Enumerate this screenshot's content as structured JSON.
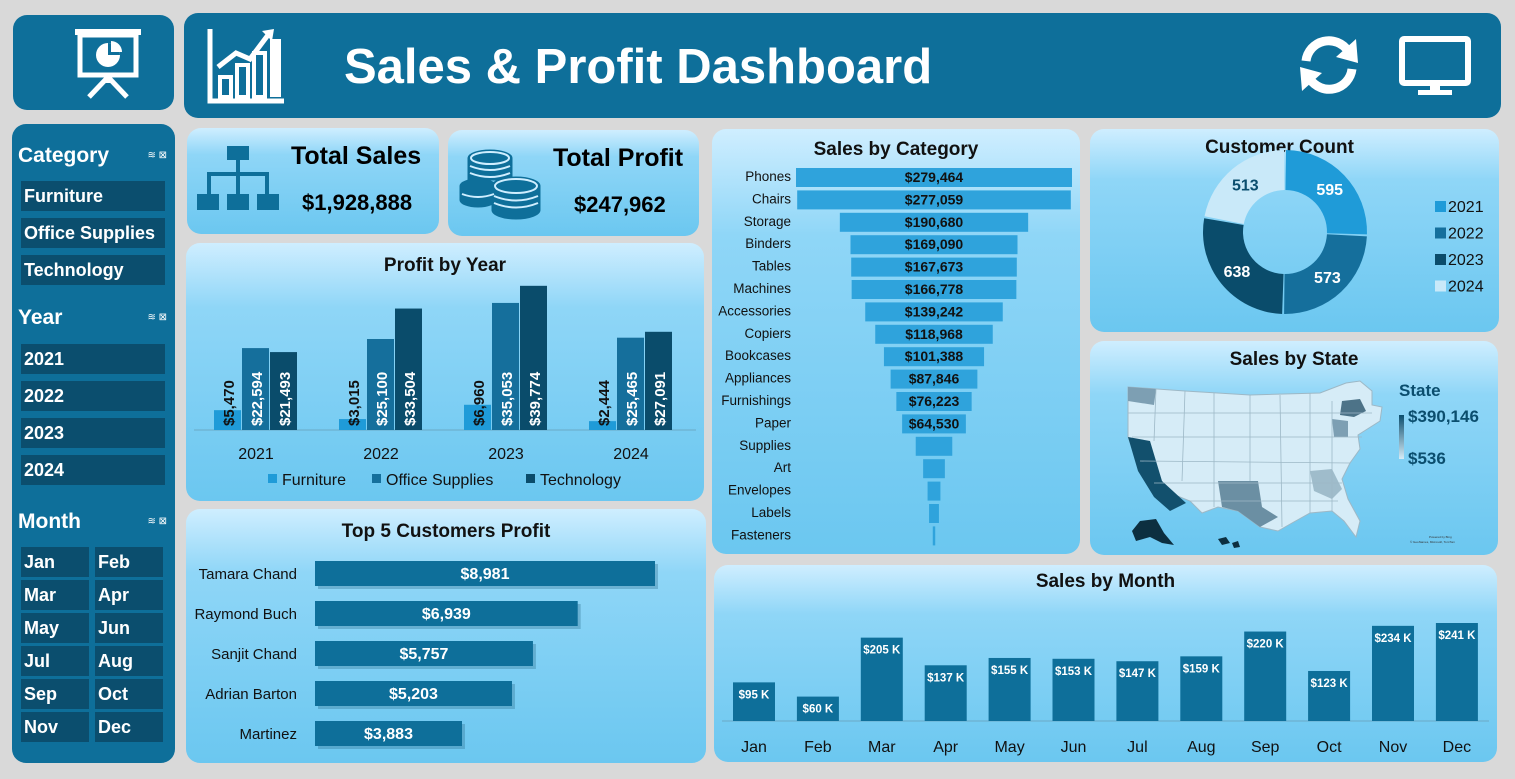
{
  "header": {
    "title": "Sales & Profit Dashboard"
  },
  "icons": {
    "presentation": "presentation-icon",
    "growth": "growth-chart-icon",
    "refresh": "refresh-icon",
    "monitor": "monitor-icon",
    "org": "org-chart-icon",
    "coins": "coins-icon",
    "filter": "filter-icon"
  },
  "colors": {
    "dark": "#0e6f9a",
    "slicer": "#0b4e6e",
    "furniture": "#1f9bd8",
    "office": "#156f9c",
    "technology": "#0a4c6b",
    "y2021": "#1f9bd8",
    "y2022": "#156f9c",
    "y2023": "#0a4c6b",
    "y2024": "#c9e9f9"
  },
  "slicers": {
    "category": {
      "label": "Category",
      "items": [
        "Furniture",
        "Office Supplies",
        "Technology"
      ]
    },
    "year": {
      "label": "Year",
      "items": [
        "2021",
        "2022",
        "2023",
        "2024"
      ]
    },
    "month": {
      "label": "Month",
      "items": [
        "Jan",
        "Feb",
        "Mar",
        "Apr",
        "May",
        "Jun",
        "Jul",
        "Aug",
        "Sep",
        "Oct",
        "Nov",
        "Dec"
      ]
    }
  },
  "kpis": {
    "total_sales": {
      "label": "Total Sales",
      "value": "$1,928,888"
    },
    "total_profit": {
      "label": "Total Profit",
      "value": "$247,962"
    }
  },
  "profit_by_year": {
    "title": "Profit by Year"
  },
  "top_customers": {
    "title": "Top 5 Customers Profit"
  },
  "sales_by_category": {
    "title": "Sales by Category"
  },
  "customer_count": {
    "title": "Customer Count"
  },
  "sales_by_state": {
    "title": "Sales by State",
    "legend_title": "State",
    "max": "$390,146",
    "min": "$536",
    "credit_1": "Powered by Bing",
    "credit_2": "© GeoNames, Microsoft, TomTom"
  },
  "sales_by_month": {
    "title": "Sales by Month"
  },
  "chart_data": [
    {
      "type": "bar",
      "title": "Profit by Year",
      "categories": [
        "2021",
        "2022",
        "2023",
        "2024"
      ],
      "series": [
        {
          "name": "Furniture",
          "values": [
            5470,
            3015,
            6960,
            2444
          ],
          "labels": [
            "$5,470",
            "$3,015",
            "$6,960",
            "$2,444"
          ]
        },
        {
          "name": "Office Supplies",
          "values": [
            22594,
            25100,
            35053,
            25465
          ],
          "labels": [
            "$22,594",
            "$25,100",
            "$35,053",
            "$25,465"
          ]
        },
        {
          "name": "Technology",
          "values": [
            21493,
            33504,
            39774,
            27091
          ],
          "labels": [
            "$21,493",
            "$33,504",
            "$39,774",
            "$27,091"
          ]
        }
      ],
      "legend": "bottom"
    },
    {
      "type": "bar",
      "title": "Top 5 Customers Profit",
      "categories": [
        "Tamara Chand",
        "Raymond Buch",
        "Sanjit Chand",
        "Adrian Barton",
        "Martinez"
      ],
      "values": [
        8981,
        6939,
        5757,
        5203,
        3883
      ],
      "labels": [
        "$8,981",
        "$6,939",
        "$5,757",
        "$5,203",
        "$3,883"
      ]
    },
    {
      "type": "bar",
      "title": "Sales by Category",
      "categories": [
        "Phones",
        "Chairs",
        "Storage",
        "Binders",
        "Tables",
        "Machines",
        "Accessories",
        "Copiers",
        "Bookcases",
        "Appliances",
        "Furnishings",
        "Paper",
        "Supplies",
        "Art",
        "Envelopes",
        "Labels",
        "Fasteners"
      ],
      "values": [
        279464,
        277059,
        190680,
        169090,
        167673,
        166778,
        139242,
        118968,
        101388,
        87846,
        76223,
        64530,
        37000,
        22000,
        13000,
        10000,
        2500
      ],
      "labels": [
        "$279,464",
        "$277,059",
        "$190,680",
        "$169,090",
        "$167,673",
        "$166,778",
        "$139,242",
        "$118,968",
        "$101,388",
        "$87,846",
        "$76,223",
        "$64,530",
        "",
        "",
        "",
        "",
        ""
      ]
    },
    {
      "type": "pie",
      "title": "Customer Count",
      "categories": [
        "2021",
        "2022",
        "2023",
        "2024"
      ],
      "values": [
        595,
        573,
        638,
        513
      ],
      "legend": "right"
    },
    {
      "type": "bar",
      "title": "Sales by Month",
      "categories": [
        "Jan",
        "Feb",
        "Mar",
        "Apr",
        "May",
        "Jun",
        "Jul",
        "Aug",
        "Sep",
        "Oct",
        "Nov",
        "Dec"
      ],
      "values": [
        95,
        60,
        205,
        137,
        155,
        153,
        147,
        159,
        220,
        123,
        234,
        241
      ],
      "labels": [
        "$95 K",
        "$60 K",
        "$205 K",
        "$137 K",
        "$155 K",
        "$153 K",
        "$147 K",
        "$159 K",
        "$220 K",
        "$123 K",
        "$234 K",
        "$241 K"
      ]
    }
  ]
}
